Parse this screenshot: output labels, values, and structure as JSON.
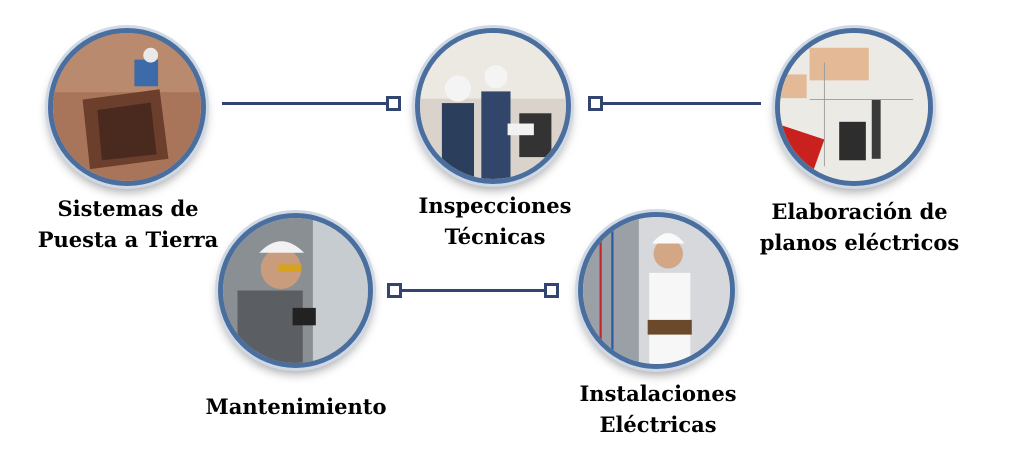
{
  "nodes": [
    {
      "id": "sistemas",
      "line1": "Sistemas de",
      "line2": "Puesta a Tierra"
    },
    {
      "id": "inspecciones",
      "line1": "Inspecciones",
      "line2": "Técnicas"
    },
    {
      "id": "elaboracion",
      "line1": "Elaboración de",
      "line2": "planos eléctricos"
    },
    {
      "id": "mantenimiento",
      "line1": "Mantenimiento",
      "line2": ""
    },
    {
      "id": "instalaciones",
      "line1": "Instalaciones",
      "line2": "Eléctricas"
    }
  ],
  "colors": {
    "ring": "#4a6e9e",
    "connector": "#31456e"
  }
}
